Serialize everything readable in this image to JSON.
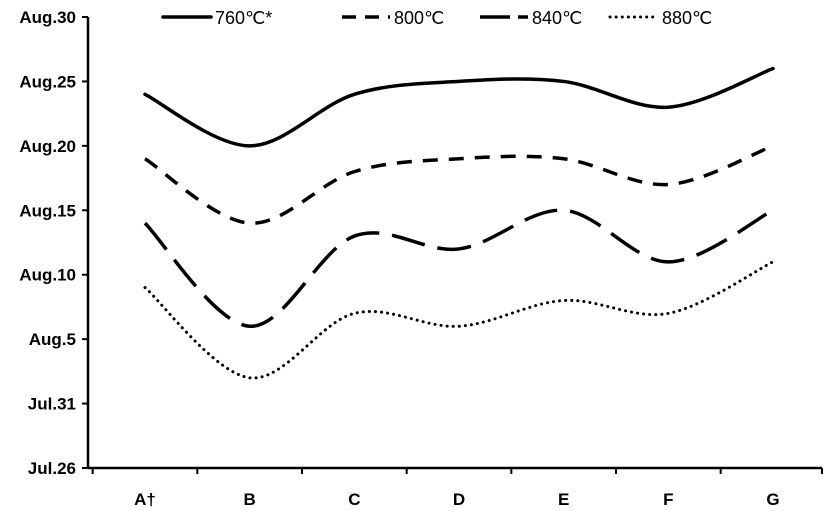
{
  "chart_data": {
    "type": "line",
    "title": "",
    "xlabel": "",
    "ylabel": "",
    "categories": [
      "A†",
      "B",
      "C",
      "D",
      "E",
      "F",
      "G"
    ],
    "y_ticks": [
      "Jul.26",
      "Jul.31",
      "Aug.5",
      "Aug.10",
      "Aug.15",
      "Aug.20",
      "Aug.25",
      "Aug.30"
    ],
    "y_unit": "days after Jul.26",
    "ylim": [
      0,
      35
    ],
    "grid": false,
    "legend_position": "top",
    "series": [
      {
        "name": "760℃*",
        "dash": "solid",
        "values": [
          29,
          25,
          29,
          30,
          30,
          28,
          31
        ]
      },
      {
        "name": "800℃",
        "dash": "dashed",
        "values": [
          24,
          19,
          23,
          24,
          24,
          22,
          25
        ]
      },
      {
        "name": "840℃",
        "dash": "long-dashed",
        "values": [
          19,
          11,
          18,
          17,
          20,
          16,
          20
        ]
      },
      {
        "name": "880℃",
        "dash": "dotted",
        "values": [
          14,
          7,
          12,
          11,
          13,
          12,
          16
        ]
      }
    ],
    "colors": {
      "line": "#000000",
      "axis": "#000000"
    }
  }
}
